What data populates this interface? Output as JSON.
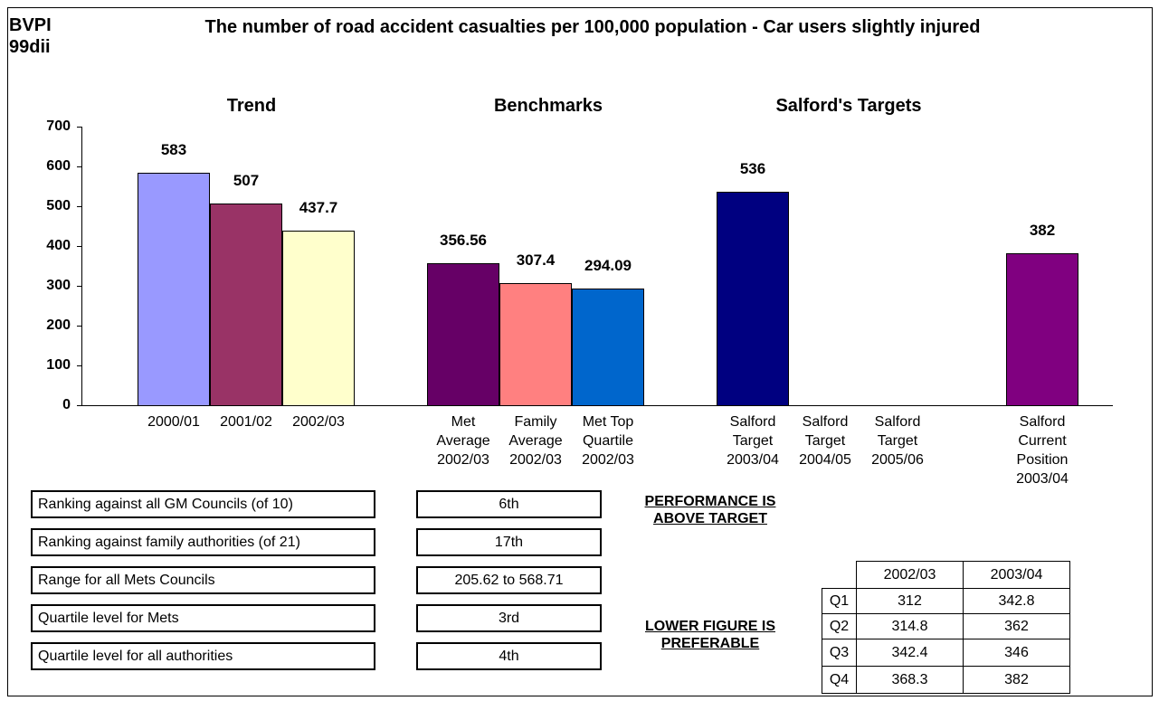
{
  "code": "BVPI\n99dii",
  "chart_data": {
    "type": "bar",
    "title": "The number of road accident casualties per 100,000 population - Car users slightly injured",
    "groups": [
      "Trend",
      "Benchmarks",
      "Salford's Targets"
    ],
    "categories": [
      "2000/01",
      "2001/02",
      "2002/03",
      null,
      "Met\nAverage\n2002/03",
      "Family\nAverage\n2002/03",
      "Met Top\nQuartile\n2002/03",
      null,
      "Salford\nTarget\n2003/04",
      "Salford\nTarget\n2004/05",
      "Salford\nTarget\n2005/06",
      null,
      "Salford\nCurrent\nPosition\n2003/04"
    ],
    "values": [
      583,
      507,
      437.7,
      null,
      356.56,
      307.4,
      294.09,
      null,
      536,
      null,
      null,
      null,
      382
    ],
    "colors": [
      "#9999ff",
      "#993366",
      "#ffffcc",
      null,
      "#660066",
      "#ff8080",
      "#0066cc",
      null,
      "#000080",
      null,
      null,
      null,
      "#800080"
    ],
    "ylim": [
      0,
      700
    ],
    "yticks": [
      0,
      100,
      200,
      300,
      400,
      500,
      600,
      700
    ]
  },
  "rankings": [
    {
      "label": "Ranking against all GM Councils (of 10)",
      "value": "6th"
    },
    {
      "label": "Ranking against family authorities (of 21)",
      "value": "17th"
    },
    {
      "label": "Range for all Mets Councils",
      "value": "205.62 to 568.71"
    },
    {
      "label": "Quartile level for Mets",
      "value": "3rd"
    },
    {
      "label": "Quartile level for all authorities",
      "value": "4th"
    }
  ],
  "notes": [
    "PERFORMANCE IS\nABOVE TARGET",
    "LOWER FIGURE IS\nPREFERABLE"
  ],
  "quartile_table": {
    "columns": [
      "2002/03",
      "2003/04"
    ],
    "rows": [
      {
        "label": "Q1",
        "values": [
          312,
          342.8
        ]
      },
      {
        "label": "Q2",
        "values": [
          314.8,
          362
        ]
      },
      {
        "label": "Q3",
        "values": [
          342.4,
          346
        ]
      },
      {
        "label": "Q4",
        "values": [
          368.3,
          382
        ]
      }
    ]
  }
}
